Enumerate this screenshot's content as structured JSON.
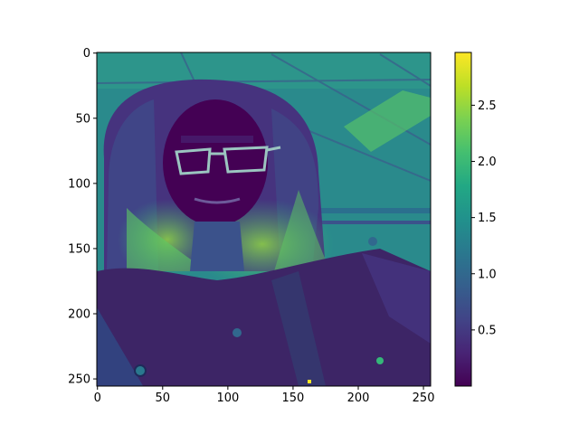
{
  "chart_data": {
    "type": "heatmap",
    "title": "",
    "xlabel": "",
    "ylabel": "",
    "image_width": 256,
    "image_height": 256,
    "xlim": [
      -0.5,
      255.5
    ],
    "ylim": [
      255.5,
      -0.5
    ],
    "x_ticks": [
      0,
      50,
      100,
      150,
      200,
      250
    ],
    "y_ticks": [
      0,
      50,
      100,
      150,
      200,
      250
    ],
    "colormap": "viridis",
    "colorbar_range": [
      0.0,
      2.97
    ],
    "colorbar_ticks": [
      0.5,
      1.0,
      1.5,
      2.0,
      2.5
    ],
    "colorbar_tick_labels": [
      "0.5",
      "1.0",
      "1.5",
      "2.0",
      "2.5"
    ],
    "grid": false,
    "content": "false-colour single-channel portrait: person with long light hair and glasses, knit jacket, office ceiling background",
    "colors": {
      "low": "#440154",
      "mid": "#21918c",
      "high": "#fde725"
    }
  }
}
